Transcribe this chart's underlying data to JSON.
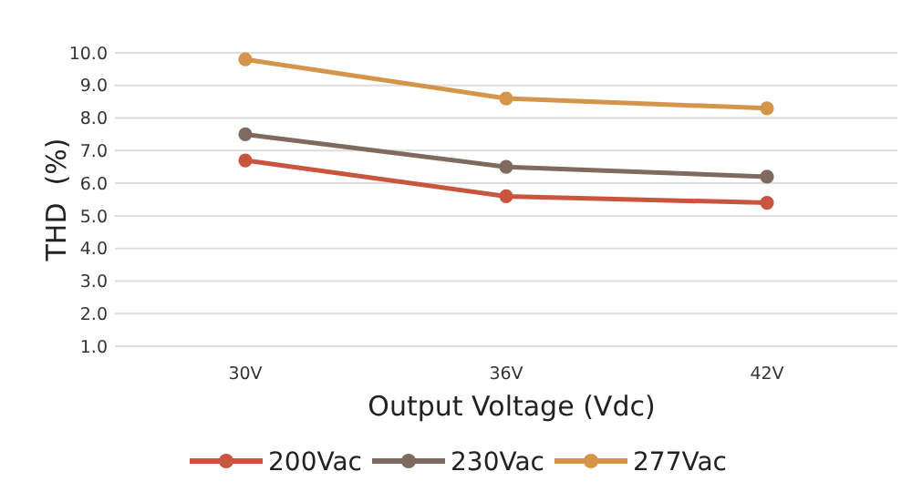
{
  "chart_data": {
    "type": "line",
    "xlabel": "Output Voltage (Vdc)",
    "ylabel": "THD  (%)",
    "categories": [
      "30V",
      "36V",
      "42V"
    ],
    "series": [
      {
        "name": "200Vac",
        "color": "#c9553f",
        "values": [
          6.7,
          5.6,
          5.4
        ]
      },
      {
        "name": "230Vac",
        "color": "#7f6a60",
        "values": [
          7.5,
          6.5,
          6.2
        ]
      },
      {
        "name": "277Vac",
        "color": "#d4944a",
        "values": [
          9.8,
          8.6,
          8.3
        ]
      }
    ],
    "ylim": [
      1,
      10
    ],
    "yticks": [
      {
        "value": 1,
        "label": "1.0"
      },
      {
        "value": 2,
        "label": "2.0"
      },
      {
        "value": 3,
        "label": "3.0"
      },
      {
        "value": 4,
        "label": "4.0"
      },
      {
        "value": 5,
        "label": "5.0"
      },
      {
        "value": 6,
        "label": "6.0"
      },
      {
        "value": 7,
        "label": "7.0"
      },
      {
        "value": 8,
        "label": "8.0"
      },
      {
        "value": 9,
        "label": "9.0"
      },
      {
        "value": 10,
        "label": "10.0"
      }
    ],
    "grid": "y",
    "legend": "bottom",
    "marker": "circle",
    "line_style": "solid"
  }
}
